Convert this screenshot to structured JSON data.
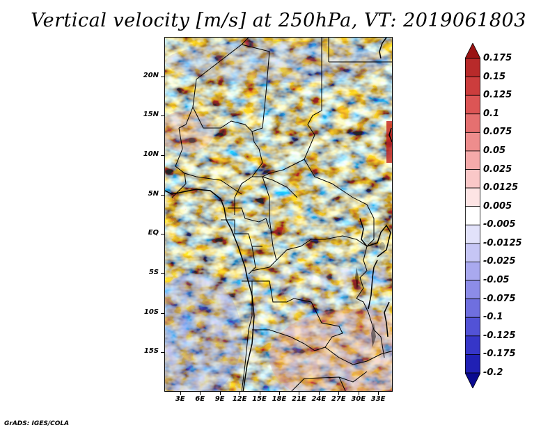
{
  "title": "Vertical velocity [m/s] at 250hPa, VT: 2019061803",
  "credit": "GrADS: IGES/COLA",
  "map": {
    "lat_labels": [
      "20N",
      "15N",
      "10N",
      "5N",
      "EQ",
      "5S",
      "10S",
      "15S"
    ],
    "lat_values": [
      20,
      15,
      10,
      5,
      0,
      -5,
      -10,
      -15
    ],
    "lon_labels": [
      "3E",
      "6E",
      "9E",
      "12E",
      "15E",
      "18E",
      "21E",
      "24E",
      "27E",
      "30E",
      "33E"
    ],
    "lon_values": [
      3,
      6,
      9,
      12,
      15,
      18,
      21,
      24,
      27,
      30,
      33
    ],
    "lat_range": [
      -20,
      25
    ],
    "lon_range": [
      0.6,
      35.2
    ]
  },
  "colorbar": {
    "levels": [
      "0.175",
      "0.15",
      "0.125",
      "0.1",
      "0.075",
      "0.05",
      "0.025",
      "0.0125",
      "0.005",
      "-0.005",
      "-0.0125",
      "-0.025",
      "-0.05",
      "-0.075",
      "-0.1",
      "-0.125",
      "-0.175",
      "-0.2"
    ],
    "colors": [
      "#a01818",
      "#b82a2a",
      "#cc3d3d",
      "#dc5555",
      "#e57070",
      "#ee8d8d",
      "#f5aaaa",
      "#fac8c8",
      "#fde4e4",
      "#ffffff",
      "#e2e2fa",
      "#c6c6f5",
      "#a9a9ef",
      "#8c8ce8",
      "#6f6fdf",
      "#5252d6",
      "#3636c8",
      "#2020b4",
      "#10109e"
    ],
    "top_color": "#9a1414",
    "bottom_color": "#0a0a90"
  }
}
